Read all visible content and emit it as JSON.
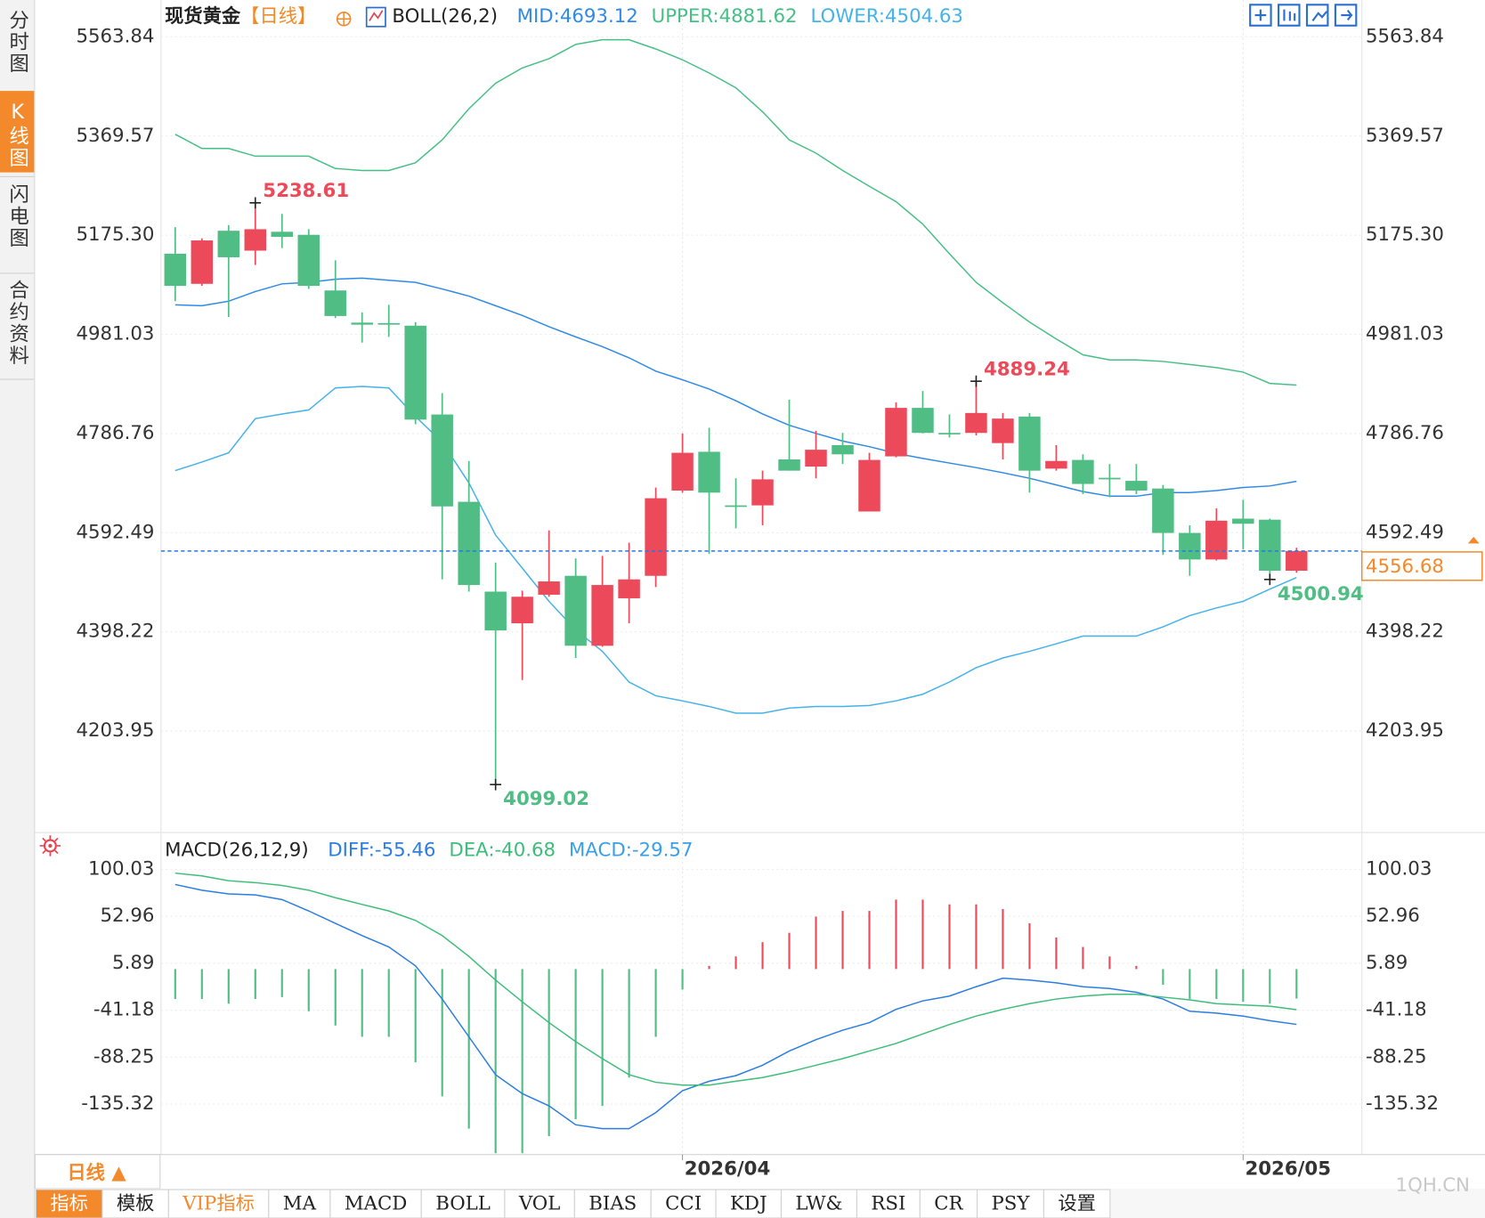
{
  "chart_data": [
    {
      "type": "candlestick",
      "title": "现货黄金",
      "period": "【日线】",
      "indicator": "BOLL(26,2)",
      "categories": [
        null,
        null,
        null,
        null,
        null,
        null,
        null,
        null,
        null,
        null,
        null,
        null,
        null,
        null,
        null,
        null,
        null,
        null,
        null,
        "2026/04",
        null,
        null,
        null,
        null,
        null,
        null,
        null,
        null,
        null,
        null,
        null,
        null,
        null,
        null,
        null,
        null,
        null,
        null,
        null,
        null,
        "2026/05",
        null,
        null
      ],
      "open": [
        5139,
        5080,
        5184,
        5145,
        5182,
        5176,
        5067,
        5004,
        5003,
        4998,
        4824,
        4653,
        4477,
        4415,
        4471,
        4508,
        4371,
        4464,
        4508,
        4675,
        4751,
        4646,
        4646,
        4736,
        4722,
        4764,
        4634,
        4742,
        4837,
        4788,
        4788,
        4768,
        4820,
        4718,
        4735,
        4700,
        4694,
        4679,
        4592,
        4540,
        4620,
        4618,
        4518
      ],
      "high": [
        5191,
        5169,
        5195,
        5238.61,
        5217,
        5187,
        5126,
        5024,
        5039,
        5005,
        4866,
        4733,
        4534,
        4479,
        4597,
        4542,
        4547,
        4573,
        4681,
        4787,
        4798,
        4699,
        4714,
        4853,
        4792,
        4788,
        4749,
        4848,
        4870,
        4824,
        4889.24,
        4827,
        4827,
        4764,
        4746,
        4727,
        4727,
        4686,
        4607,
        4640,
        4657,
        4620,
        4563
      ],
      "low": [
        5046,
        5076,
        5015,
        5117,
        5150,
        5070,
        5013,
        4965,
        4976,
        4805,
        4501,
        4477,
        4099.02,
        4304,
        4467,
        4347,
        4369,
        4415,
        4486,
        4671,
        4551,
        4601,
        4607,
        4714,
        4699,
        4727,
        4634,
        4740,
        4787,
        4779,
        4783,
        4736,
        4671,
        4714,
        4668,
        4662,
        4668,
        4549,
        4508,
        4538,
        4560,
        4500.94,
        4514
      ],
      "close": [
        5076,
        5165,
        5132,
        5187,
        5172,
        5076,
        5017,
        5000,
        5001,
        4814,
        4644,
        4490,
        4401,
        4467,
        4497,
        4371,
        4490,
        4501,
        4660,
        4749,
        4671,
        4644,
        4697,
        4714,
        4755,
        4746,
        4735,
        4837,
        4788,
        4787,
        4827,
        4816,
        4714,
        4733,
        4688,
        4698,
        4675,
        4592,
        4540,
        4616,
        4610,
        4518,
        4556.68
      ],
      "up_color": "#ec4a5a",
      "down_color": "#4fbd84",
      "last_price_color": "#f5892a",
      "series": [
        {
          "name": "MID:",
          "color": "#2f8ae6",
          "values": [
            5039,
            5037,
            5046,
            5065,
            5080,
            5083,
            5089,
            5091,
            5087,
            5083,
            5070,
            5056,
            5037,
            5018,
            4996,
            4976,
            4957,
            4935,
            4909,
            4892,
            4874,
            4851,
            4825,
            4803,
            4787,
            4772,
            4761,
            4748,
            4738,
            4729,
            4720,
            4710,
            4699,
            4686,
            4673,
            4664,
            4664,
            4671,
            4671,
            4675,
            4681,
            4684,
            4693.12
          ]
        },
        {
          "name": "UPPER:",
          "color": "#46bf86",
          "values": [
            5373,
            5345,
            5345,
            5330,
            5330,
            5330,
            5306,
            5302,
            5302,
            5317,
            5362,
            5423,
            5473,
            5503,
            5521,
            5549,
            5558,
            5558,
            5540,
            5519,
            5493,
            5464,
            5417,
            5362,
            5336,
            5302,
            5271,
            5241,
            5197,
            5139,
            5083,
            5043,
            5005,
            4972,
            4941,
            4931,
            4931,
            4928,
            4922,
            4916,
            4907,
            4885,
            4881.62
          ]
        },
        {
          "name": "LOWER:",
          "color": "#45b2ea",
          "values": [
            4714,
            4731,
            4749,
            4816,
            4825,
            4833,
            4876,
            4879,
            4876,
            4820,
            4770,
            4690,
            4588,
            4523,
            4458,
            4402,
            4360,
            4300,
            4273,
            4263,
            4252,
            4239,
            4239,
            4249,
            4252,
            4252,
            4254,
            4263,
            4276,
            4300,
            4328,
            4347,
            4360,
            4375,
            4390,
            4390,
            4390,
            4408,
            4430,
            4445,
            4458,
            4482,
            4504.63
          ]
        }
      ],
      "ylim": [
        4007,
        5636
      ],
      "yticks": [
        5563.84,
        5369.57,
        {
          "value": 5175.3,
          "label": "5175.30"
        },
        4981.03,
        4786.76,
        4592.49,
        4398.22,
        4203.95
      ],
      "grid": true
    },
    {
      "type": "macd",
      "title": "MACD(26,12,9)",
      "up_color": "#ec4a5a",
      "down_color": "#4fbd84",
      "series": [
        {
          "name": "DIFF:",
          "color": "#2b7de0",
          "kind": "line",
          "values": [
            84.8,
            79.1,
            75.4,
            74.4,
            69.7,
            58.3,
            45.9,
            33.6,
            22.2,
            3.2,
            -30.0,
            -67.9,
            -105.9,
            -124.9,
            -137.2,
            -156.2,
            -160.0,
            -160.0,
            -143.9,
            -122.0,
            -112.5,
            -106.9,
            -96.4,
            -82.2,
            -70.8,
            -61.3,
            -53.7,
            -40.4,
            -31.9,
            -27.1,
            -17.7,
            -9.1,
            -11.0,
            -13.8,
            -17.7,
            -19.5,
            -23.3,
            -30.0,
            -42.3,
            -44.2,
            -47.1,
            -51.8,
            -55.46
          ]
        },
        {
          "name": "DEA:",
          "color": "#3dbd7a",
          "kind": "line",
          "values": [
            96.2,
            93.4,
            88.6,
            86.7,
            83.9,
            79.1,
            71.6,
            64.9,
            58.3,
            48.8,
            33.6,
            12.7,
            -11.0,
            -32.8,
            -53.7,
            -72.7,
            -89.8,
            -105.9,
            -113.5,
            -116.4,
            -116.4,
            -112.5,
            -108.8,
            -103.1,
            -96.4,
            -89.8,
            -82.2,
            -74.6,
            -65.1,
            -55.6,
            -47.1,
            -40.4,
            -34.7,
            -30.0,
            -27.1,
            -25.3,
            -25.3,
            -28.1,
            -30.9,
            -34.7,
            -36.0,
            -37.3,
            -40.68
          ]
        },
        {
          "name": "MACD:",
          "color": "#3a9fe8",
          "kind": "bar",
          "values": [
            -30.0,
            -30.0,
            -34.7,
            -30.0,
            -28.1,
            -42.3,
            -56.6,
            -67.9,
            -67.9,
            -93.5,
            -127.7,
            -160.0,
            -184.7,
            -184.7,
            -167.6,
            -150.5,
            -137.2,
            -108.8,
            -67.9,
            -20.5,
            3.2,
            12.7,
            27.0,
            36.4,
            52.6,
            58.3,
            58.3,
            69.7,
            69.7,
            64.9,
            64.9,
            60.2,
            45.9,
            31.7,
            22.2,
            12.7,
            3.2,
            -15.8,
            -30.0,
            -30.0,
            -32.8,
            -34.7,
            -29.57
          ]
        }
      ],
      "ylim": [
        -186,
        136
      ],
      "yticks": [
        100.03,
        52.96,
        5.89,
        -41.18,
        -88.25,
        -135.32
      ],
      "grid": true
    }
  ],
  "sidebar": [
    "分时图",
    "K线图",
    "闪电图",
    "合约资料"
  ],
  "period_tab": "日线 ▲",
  "toolbar": [
    "指标",
    "模板",
    "VIP指标",
    "MA",
    "MACD",
    "BOLL",
    "VOL",
    "BIAS",
    "CCI",
    "KDJ",
    "LW&",
    "RSI",
    "CR",
    "PSY",
    "设置"
  ],
  "watermark": "1QH.CN"
}
